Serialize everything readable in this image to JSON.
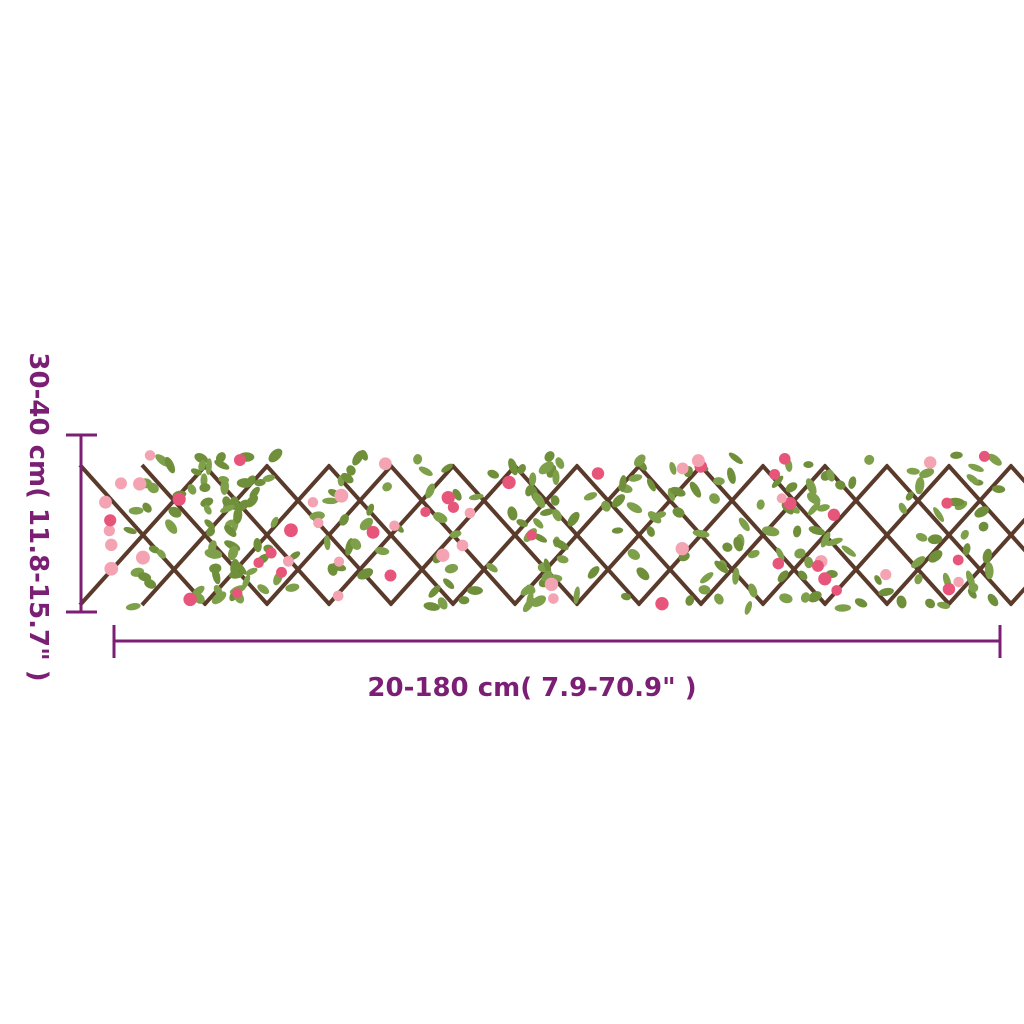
{
  "dimensions": {
    "width_label": "20-180 cm( 7.9-70.9\" )",
    "height_label": "30-40 cm( 11.8-15.7\" )"
  },
  "colors": {
    "dimension": "#7b1f74",
    "trellis_wood": "#5a3a2a",
    "leaf": "#6f8f3a",
    "flower": "#e8557a",
    "flower_light": "#f4a3b3"
  },
  "product": {
    "image": "expandable willow trellis with artificial pink flowers"
  }
}
